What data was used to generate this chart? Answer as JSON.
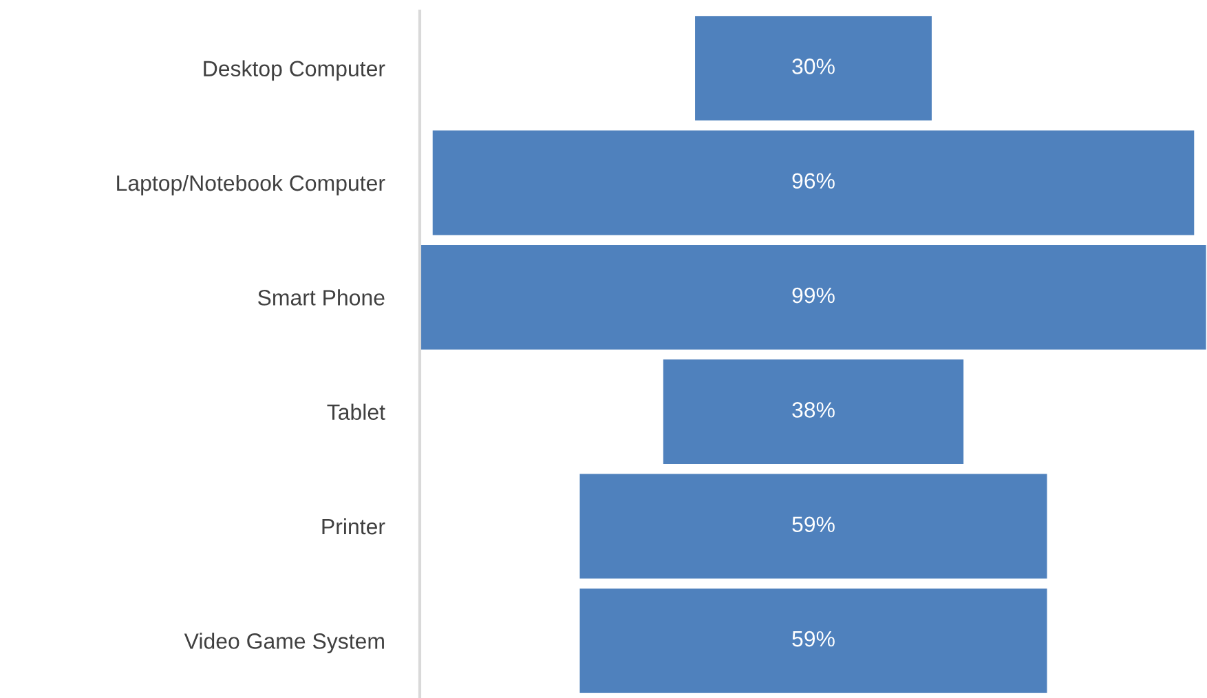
{
  "chart_data": {
    "type": "other",
    "categories": [
      "Desktop Computer",
      "Laptop/Notebook Computer",
      "Smart Phone",
      "Tablet",
      "Printer",
      "Video Game System"
    ],
    "values": [
      30,
      96,
      99,
      38,
      59,
      59
    ],
    "value_labels": [
      "30%",
      "96%",
      "99%",
      "38%",
      "59%",
      "59%"
    ],
    "color": "#4f81bd"
  }
}
